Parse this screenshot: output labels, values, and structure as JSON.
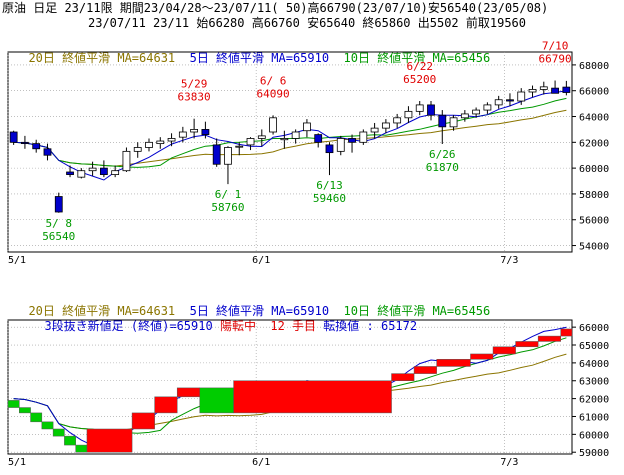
{
  "header": {
    "line1": "原油 日足 23/11限 期間23/04/28～23/07/11( 50)高66790(23/07/10)安56540(23/05/08)",
    "line2": "23/07/11 23/11 始66280 高66760 安65640 終65860 出5502 前取19560"
  },
  "top_panel": {
    "ma20": "20日 終値平滑 MA=64631",
    "ma5": "5日 終値平滑 MA=65910",
    "ma10": "10日 終値平滑 MA=65456"
  },
  "bottom_panel": {
    "ma20": "20日 終値平滑 MA=64631",
    "ma5": "5日 終値平滑 MA=65910",
    "ma10": "10日 終値平滑 MA=65456",
    "sanpon_label": "3段抜き新値足 (終値)=65910",
    "sanpon_status": "陽転中  12 手目",
    "sanpon_turn": "転換値 : 65172"
  },
  "colors": {
    "ma20": "#8B7500",
    "ma5": "#0000cc",
    "ma10": "#009900",
    "up_candle": "#ffffff",
    "down_candle": "#0000cc",
    "bull_block": "#ff0000",
    "bear_block": "#00cc00",
    "annotation_high": "#e00000",
    "annotation_low": "#009900"
  },
  "chart_data": [
    {
      "type": "candlestick",
      "x_tick_labels": [
        "5/1",
        "6/1",
        "7/3"
      ],
      "y_tick_labels": [
        "54000",
        "56000",
        "58000",
        "60000",
        "62000",
        "64000",
        "66000",
        "68000"
      ],
      "ylim": [
        53500,
        69000
      ],
      "candles": [
        [
          62800,
          62900,
          61800,
          62000
        ],
        [
          62000,
          62500,
          61500,
          61900
        ],
        [
          61900,
          62200,
          61200,
          61500
        ],
        [
          61500,
          61900,
          60600,
          61000
        ],
        [
          57800,
          58100,
          56540,
          56600
        ],
        [
          59700,
          60200,
          59300,
          59500
        ],
        [
          59300,
          60000,
          59200,
          59800
        ],
        [
          59800,
          60500,
          59400,
          60000
        ],
        [
          60000,
          60600,
          59300,
          59500
        ],
        [
          59500,
          60200,
          59300,
          59800
        ],
        [
          59800,
          61600,
          59700,
          61300
        ],
        [
          61300,
          62000,
          60800,
          61600
        ],
        [
          61600,
          62300,
          61300,
          62000
        ],
        [
          61900,
          62400,
          61500,
          62100
        ],
        [
          62100,
          62700,
          61700,
          62300
        ],
        [
          62400,
          63200,
          62000,
          62800
        ],
        [
          62800,
          63830,
          62300,
          63000
        ],
        [
          63000,
          63600,
          62300,
          62600
        ],
        [
          61800,
          62300,
          60100,
          60300
        ],
        [
          60300,
          61700,
          58760,
          61600
        ],
        [
          61700,
          62000,
          61000,
          61700
        ],
        [
          61800,
          62400,
          61400,
          62300
        ],
        [
          62300,
          63000,
          61700,
          62500
        ],
        [
          62800,
          64090,
          62600,
          63900
        ],
        [
          62200,
          62900,
          61500,
          62300
        ],
        [
          62300,
          63000,
          61900,
          62800
        ],
        [
          62900,
          63800,
          62400,
          63500
        ],
        [
          62600,
          62700,
          61600,
          62000
        ],
        [
          61800,
          62000,
          59460,
          61200
        ],
        [
          61300,
          62500,
          61000,
          62300
        ],
        [
          62300,
          62600,
          61200,
          62000
        ],
        [
          62000,
          63000,
          61800,
          62800
        ],
        [
          62800,
          63500,
          62300,
          63100
        ],
        [
          63100,
          63800,
          62700,
          63500
        ],
        [
          63500,
          64200,
          63100,
          63900
        ],
        [
          63900,
          64800,
          63500,
          64400
        ],
        [
          64400,
          65200,
          64100,
          64900
        ],
        [
          64900,
          65200,
          63700,
          64100
        ],
        [
          64100,
          64500,
          61870,
          63200
        ],
        [
          63200,
          64100,
          62900,
          63900
        ],
        [
          63900,
          64500,
          63600,
          64200
        ],
        [
          64200,
          64700,
          63900,
          64500
        ],
        [
          64500,
          65100,
          64200,
          64900
        ],
        [
          64900,
          65600,
          64600,
          65300
        ],
        [
          65300,
          65800,
          64800,
          65200
        ],
        [
          65200,
          66200,
          64900,
          65900
        ],
        [
          65900,
          66400,
          65500,
          66100
        ],
        [
          66100,
          66700,
          65700,
          66300
        ],
        [
          66200,
          66790,
          65900,
          65800
        ],
        [
          66280,
          66760,
          65640,
          65860
        ]
      ],
      "annotations": [
        {
          "date": "5/ 8",
          "value": 56540,
          "kind": "low"
        },
        {
          "date": "5/29",
          "value": 63830,
          "kind": "high"
        },
        {
          "date": "6/ 1",
          "value": 58760,
          "kind": "low"
        },
        {
          "date": "6/ 6",
          "value": 64090,
          "kind": "high"
        },
        {
          "date": "6/13",
          "value": 59460,
          "kind": "low"
        },
        {
          "date": "6/22",
          "value": 65200,
          "kind": "high"
        },
        {
          "date": "6/26",
          "value": 61870,
          "kind": "low"
        },
        {
          "date": "7/10",
          "value": 66790,
          "kind": "high"
        }
      ]
    },
    {
      "type": "new_price_blocks",
      "x_tick_labels": [
        "5/1",
        "6/1",
        "7/3"
      ],
      "y_tick_labels": [
        "59000",
        "60000",
        "61000",
        "62000",
        "63000",
        "64000",
        "65000",
        "66000"
      ],
      "ylim": [
        58900,
        66400
      ],
      "blocks": [
        {
          "d": 1,
          "lo": 61500,
          "hi": 61900
        },
        {
          "d": 2,
          "lo": 61200,
          "hi": 61500
        },
        {
          "d": 3,
          "lo": 60700,
          "hi": 61200
        },
        {
          "d": 4,
          "lo": 60300,
          "hi": 60700
        },
        {
          "d": 5,
          "lo": 59900,
          "hi": 60300
        },
        {
          "d": 6,
          "lo": 59400,
          "hi": 59900
        },
        {
          "d": 7,
          "lo": 59000,
          "hi": 59400
        },
        {
          "d": 11,
          "lo": 59000,
          "hi": 60300
        },
        {
          "d": 13,
          "lo": 60300,
          "hi": 61200
        },
        {
          "d": 15,
          "lo": 61200,
          "hi": 62100
        },
        {
          "d": 17,
          "lo": 62100,
          "hi": 62600
        },
        {
          "d": 20,
          "lo": 61200,
          "hi": 62600
        },
        {
          "d": 34,
          "lo": 61200,
          "hi": 63000
        },
        {
          "d": 36,
          "lo": 63000,
          "hi": 63400
        },
        {
          "d": 38,
          "lo": 63400,
          "hi": 63800
        },
        {
          "d": 41,
          "lo": 63800,
          "hi": 64200
        },
        {
          "d": 43,
          "lo": 64200,
          "hi": 64500
        },
        {
          "d": 45,
          "lo": 64500,
          "hi": 64900
        },
        {
          "d": 47,
          "lo": 64900,
          "hi": 65200
        },
        {
          "d": 49,
          "lo": 65200,
          "hi": 65500
        },
        {
          "d": 50,
          "lo": 65500,
          "hi": 65900
        }
      ]
    }
  ]
}
